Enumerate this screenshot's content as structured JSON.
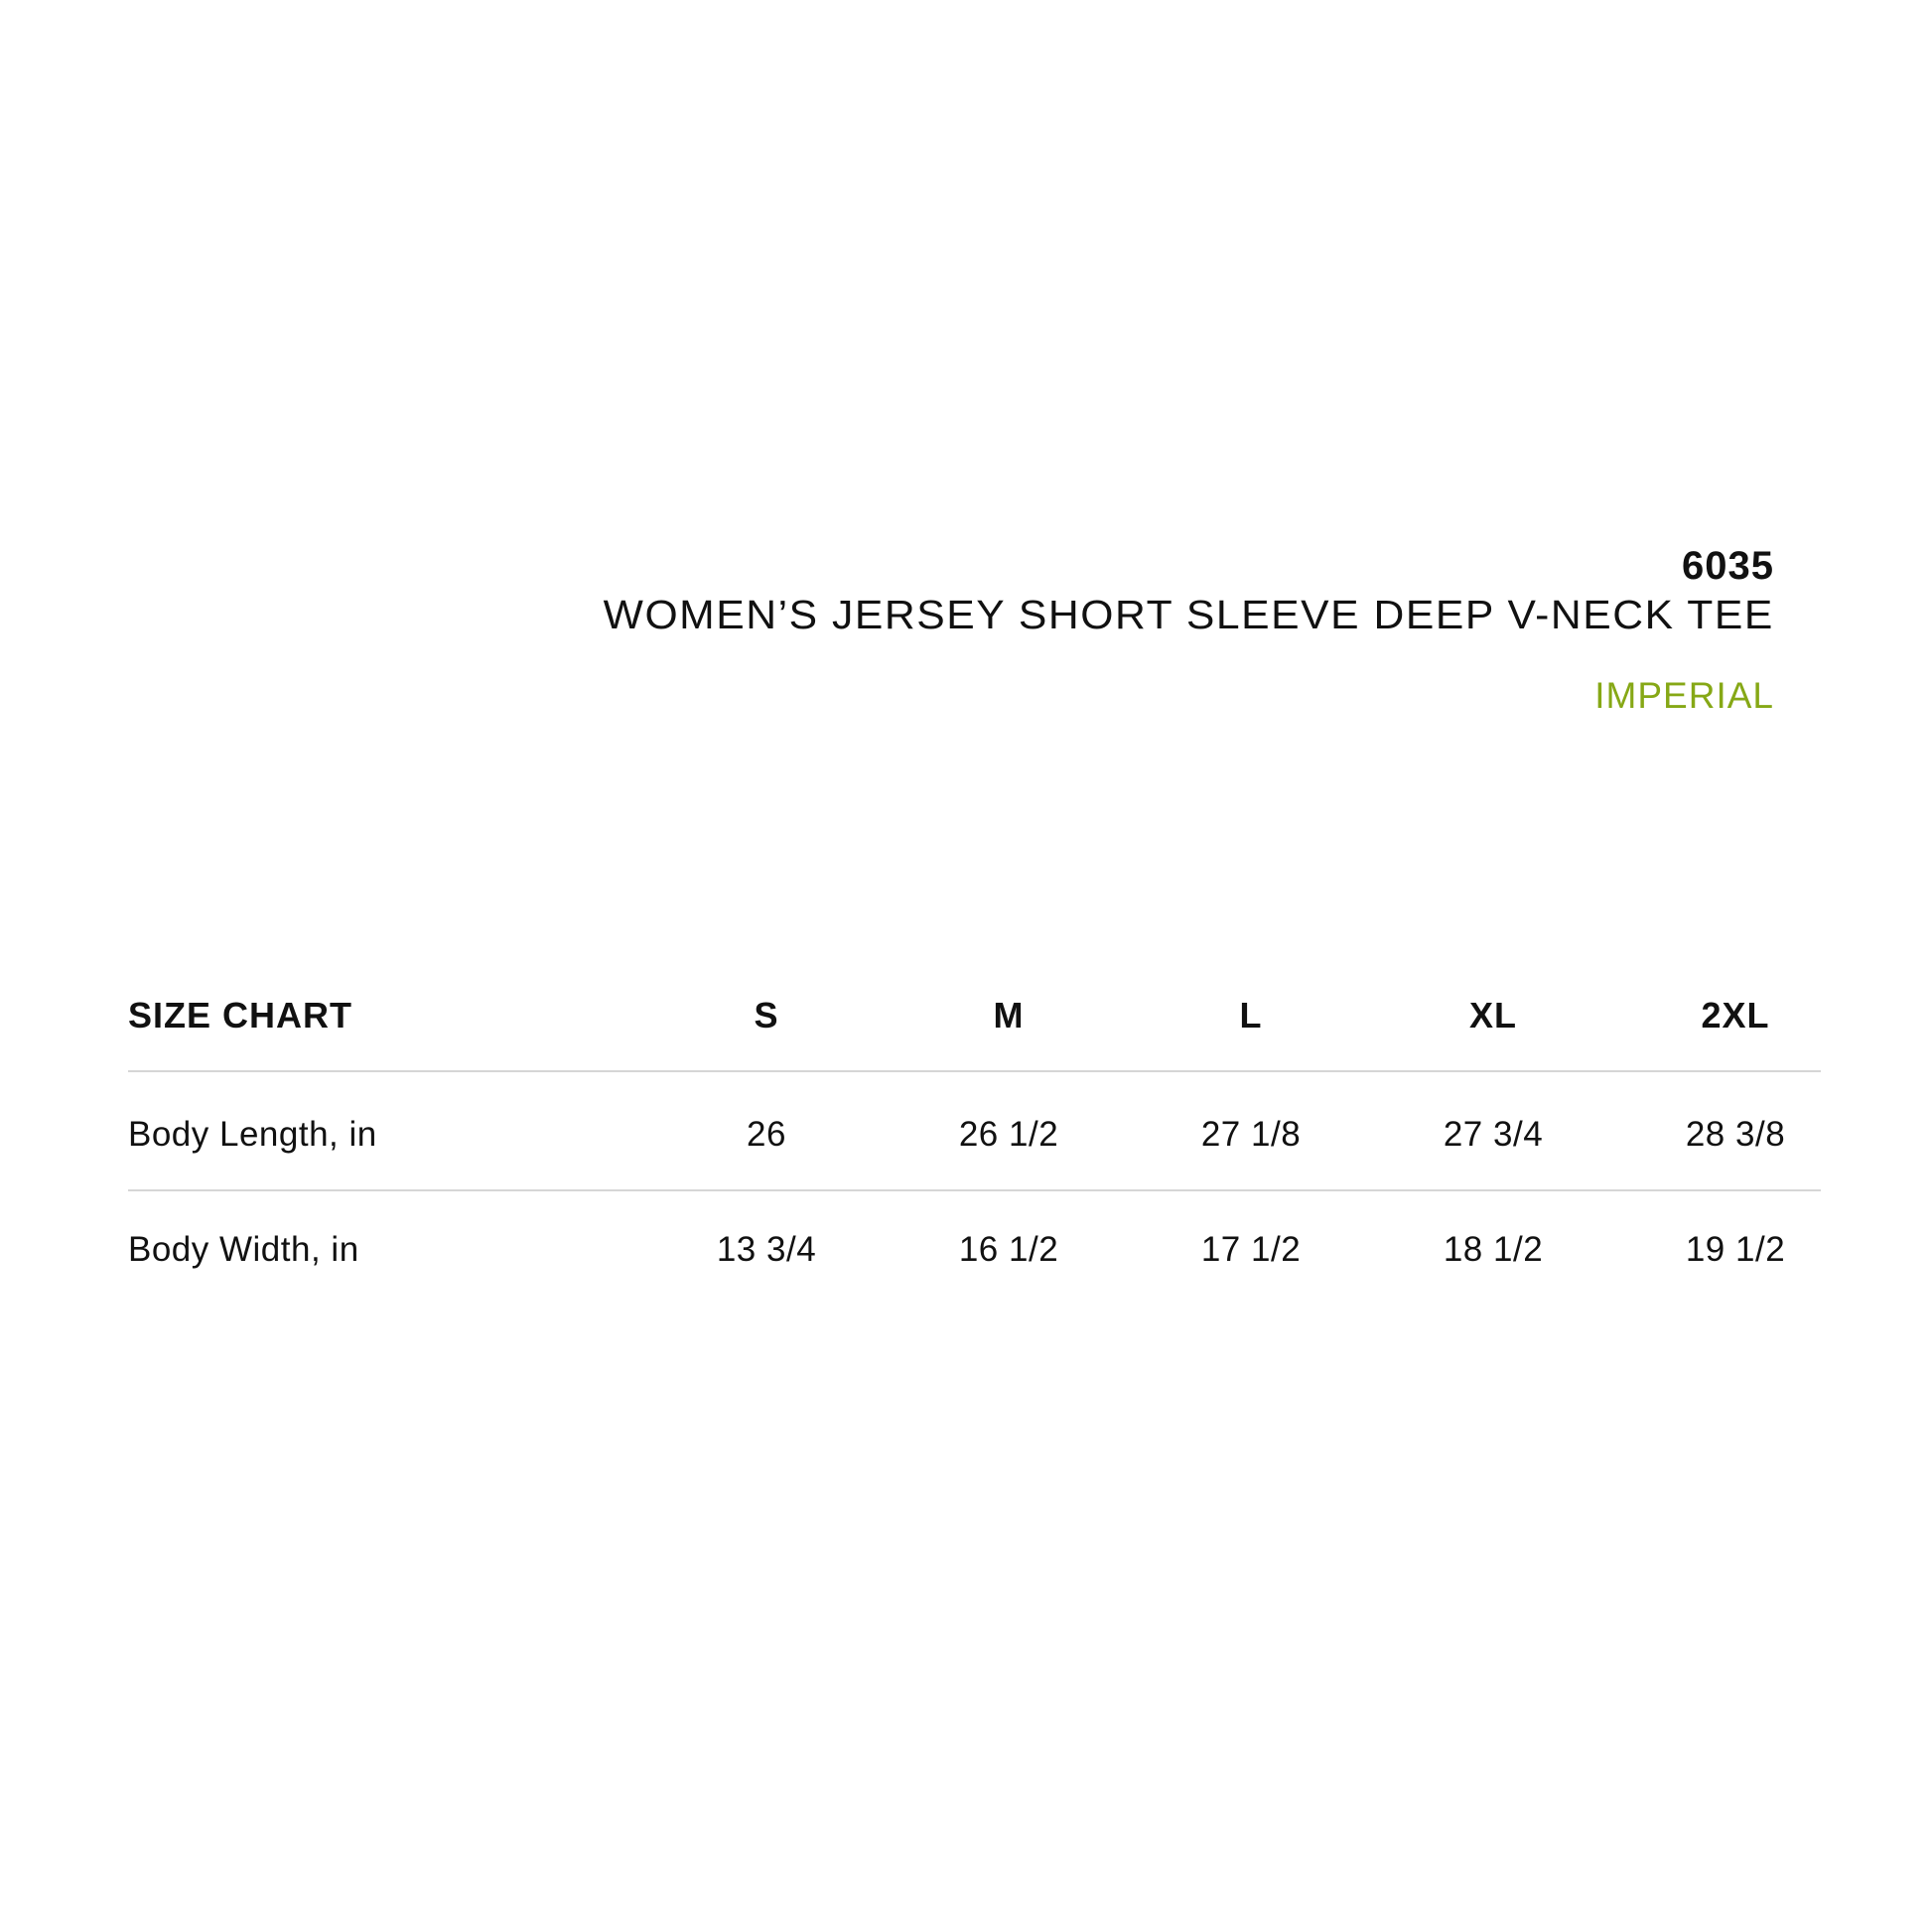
{
  "product": {
    "code": "6035",
    "title": "WOMEN’S JERSEY SHORT SLEEVE DEEP V-NECK TEE",
    "unit_system": "IMPERIAL",
    "accent_color": "#86a816"
  },
  "table": {
    "header_label": "SIZE CHART",
    "sizes": [
      "S",
      "M",
      "L",
      "XL",
      "2XL"
    ],
    "rows": [
      {
        "label": "Body Length, in",
        "values": [
          "26",
          "26 1/2",
          "27 1/8",
          "27 3/4",
          "28 3/8"
        ]
      },
      {
        "label": "Body Width, in",
        "values": [
          "13 3/4",
          "16 1/2",
          "17 1/2",
          "18 1/2",
          "19 1/2"
        ]
      }
    ]
  }
}
